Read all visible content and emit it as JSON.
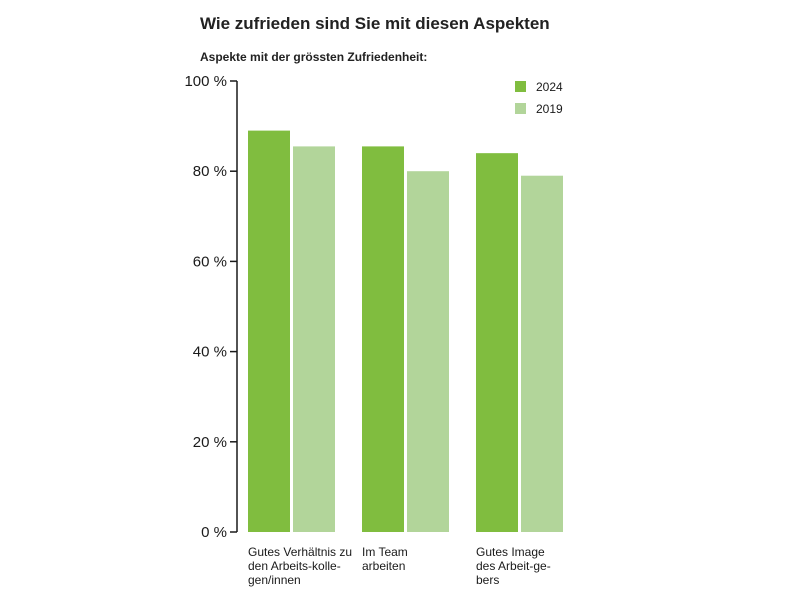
{
  "header": {
    "title": "Wie zufrieden sind Sie mit diesen Aspekten",
    "subtitle": "Aspekte mit der grössten Zufriedenheit:"
  },
  "colors": {
    "series_2024": "#80bd3f",
    "series_2019": "#b2d59a",
    "axis": "#1a1a1a"
  },
  "chart_data": {
    "type": "bar",
    "title": "Wie zufrieden sind Sie mit diesen Aspekten",
    "subtitle": "Aspekte mit der grössten Zufriedenheit:",
    "xlabel": "",
    "ylabel": "",
    "ylim": [
      0,
      100
    ],
    "y_ticks": [
      0,
      20,
      40,
      60,
      80,
      100
    ],
    "y_tick_labels": [
      "0 %",
      "20 %",
      "40 %",
      "60 %",
      "80 %",
      "100 %"
    ],
    "grid": false,
    "legend_position": "top-right",
    "categories": [
      [
        "Gutes Verhältnis zu",
        "den Arbeits-kolle-",
        "gen/innen"
      ],
      [
        "Im Team",
        "arbeiten"
      ],
      [
        "Gutes Image",
        "des Arbeit-ge-",
        "bers"
      ]
    ],
    "series": [
      {
        "name": "2024",
        "values": [
          89,
          85.5,
          84
        ]
      },
      {
        "name": "2019",
        "values": [
          85.5,
          80,
          79
        ]
      }
    ]
  }
}
